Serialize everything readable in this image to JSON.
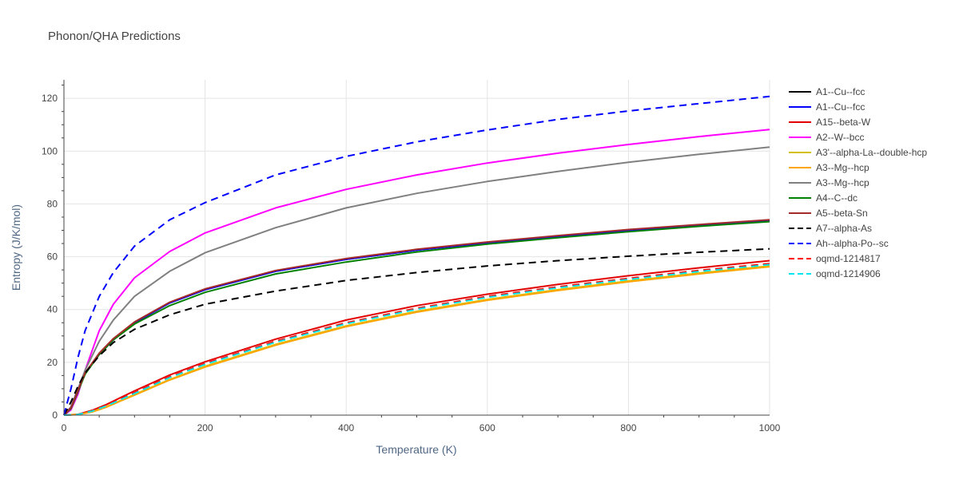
{
  "chart_data": {
    "type": "line",
    "title": "Phonon/QHA Predictions",
    "xlabel": "Temperature (K)",
    "ylabel": "Entropy (J/K/mol)",
    "xlim": [
      0,
      1000
    ],
    "ylim": [
      0,
      127
    ],
    "xticks": [
      0,
      200,
      400,
      600,
      800,
      1000
    ],
    "yticks": [
      0,
      20,
      40,
      60,
      80,
      100,
      120
    ],
    "grid": true,
    "legend_position": "right",
    "series": [
      {
        "name": "A1--Cu--fcc",
        "color": "#000000",
        "dash": "solid",
        "x": [
          0,
          10,
          20,
          30,
          50,
          70,
          100,
          150,
          200,
          300,
          400,
          500,
          600,
          700,
          800,
          900,
          1000
        ],
        "y": [
          0,
          3,
          10,
          16,
          23,
          28.5,
          35,
          42.5,
          47.5,
          54.5,
          59,
          62.5,
          65.3,
          67.7,
          69.9,
          71.8,
          73.5
        ]
      },
      {
        "name": "A1--Cu--fcc",
        "color": "#0000ff",
        "dash": "solid",
        "x": [
          0,
          10,
          20,
          30,
          50,
          70,
          100,
          150,
          200,
          300,
          400,
          500,
          600,
          700,
          800,
          900,
          1000
        ],
        "y": [
          0,
          3,
          10,
          16,
          23,
          28.5,
          35,
          42.5,
          47.5,
          54.5,
          59,
          62.5,
          65.3,
          67.7,
          69.9,
          71.8,
          73.5
        ]
      },
      {
        "name": "A15--beta-W",
        "color": "#e30000",
        "dash": "solid",
        "x": [
          0,
          20,
          40,
          60,
          80,
          100,
          150,
          200,
          300,
          400,
          500,
          600,
          700,
          800,
          900,
          1000
        ],
        "y": [
          0,
          0.3,
          1.8,
          4,
          6.6,
          9.2,
          15.2,
          20.2,
          28.8,
          36,
          41.5,
          45.8,
          49.5,
          52.8,
          55.8,
          58.5
        ]
      },
      {
        "name": "A2--W--bcc",
        "color": "#ff00ff",
        "dash": "solid",
        "x": [
          0,
          10,
          20,
          30,
          50,
          70,
          100,
          150,
          200,
          300,
          400,
          500,
          600,
          700,
          800,
          900,
          1000
        ],
        "y": [
          0,
          2,
          8,
          17,
          32,
          42,
          52,
          62,
          69,
          78.5,
          85.5,
          91,
          95.5,
          99.2,
          102.5,
          105.5,
          108.2
        ]
      },
      {
        "name": "A3'--alpha-La--double-hcp",
        "color": "#d4c000",
        "dash": "solid",
        "x": [
          0,
          20,
          40,
          60,
          80,
          100,
          150,
          200,
          300,
          400,
          500,
          600,
          700,
          800,
          900,
          1000
        ],
        "y": [
          0,
          0.2,
          1.3,
          3.2,
          5.5,
          7.8,
          13.5,
          18.5,
          26.8,
          33.8,
          39.3,
          43.8,
          47.5,
          50.8,
          53.8,
          56.5
        ]
      },
      {
        "name": "A3--Mg--hcp",
        "color": "#ffa500",
        "dash": "solid",
        "x": [
          0,
          20,
          40,
          60,
          80,
          100,
          150,
          200,
          300,
          400,
          500,
          600,
          700,
          800,
          900,
          1000
        ],
        "y": [
          0,
          0.2,
          1.2,
          3,
          5.3,
          7.6,
          13.3,
          18.2,
          26.5,
          33.5,
          39,
          43.5,
          47.2,
          50.5,
          53.5,
          56.2
        ]
      },
      {
        "name": "A3--Mg--hcp",
        "color": "#808080",
        "dash": "solid",
        "x": [
          0,
          10,
          20,
          30,
          50,
          70,
          100,
          150,
          200,
          300,
          400,
          500,
          600,
          700,
          800,
          900,
          1000
        ],
        "y": [
          0,
          3,
          10,
          17,
          28,
          36,
          45,
          54.5,
          61.5,
          71,
          78.5,
          84,
          88.5,
          92.3,
          95.8,
          98.8,
          101.5
        ]
      },
      {
        "name": "A4--C--dc",
        "color": "#008000",
        "dash": "solid",
        "x": [
          0,
          10,
          20,
          30,
          50,
          70,
          100,
          150,
          200,
          300,
          400,
          500,
          600,
          700,
          800,
          900,
          1000
        ],
        "y": [
          0,
          2.5,
          9,
          15.5,
          23,
          28.5,
          34.5,
          41.5,
          46.5,
          53.5,
          58,
          61.8,
          64.8,
          67.2,
          69.5,
          71.5,
          73.3
        ]
      },
      {
        "name": "A5--beta-Sn",
        "color": "#a52a2a",
        "dash": "solid",
        "x": [
          0,
          10,
          20,
          30,
          50,
          70,
          100,
          150,
          200,
          300,
          400,
          500,
          600,
          700,
          800,
          900,
          1000
        ],
        "y": [
          0,
          2.8,
          9.5,
          16,
          23.5,
          29,
          35.3,
          42.8,
          47.8,
          54.8,
          59.3,
          62.8,
          65.6,
          68,
          70.3,
          72.2,
          74
        ]
      },
      {
        "name": "A7--alpha-As",
        "color": "#000000",
        "dash": "dash",
        "x": [
          0,
          10,
          20,
          30,
          50,
          70,
          100,
          150,
          200,
          300,
          400,
          500,
          600,
          700,
          800,
          900,
          1000
        ],
        "y": [
          0,
          5,
          11,
          16,
          22.5,
          27.5,
          32.5,
          38,
          42,
          47,
          51,
          54,
          56.5,
          58.5,
          60.2,
          61.7,
          63
        ]
      },
      {
        "name": "Ah--alpha-Po--sc",
        "color": "#0000ff",
        "dash": "dash",
        "x": [
          0,
          10,
          20,
          30,
          50,
          70,
          100,
          150,
          200,
          300,
          400,
          500,
          600,
          700,
          800,
          900,
          1000
        ],
        "y": [
          0,
          10,
          22,
          32,
          45,
          54,
          64,
          74,
          80.5,
          91,
          98,
          103.5,
          108,
          112,
          115.2,
          118,
          120.7
        ]
      },
      {
        "name": "oqmd-1214817",
        "color": "#ff0000",
        "dash": "dash",
        "x": [
          0,
          20,
          40,
          60,
          80,
          100,
          150,
          200,
          300,
          400,
          500,
          600,
          700,
          800,
          900,
          1000
        ],
        "y": [
          0,
          0.25,
          1.6,
          3.6,
          6,
          8.5,
          14.5,
          19.5,
          28,
          35,
          40.5,
          45,
          48.6,
          51.8,
          54.8,
          57.4
        ]
      },
      {
        "name": "oqmd-1214906",
        "color": "#00e5ee",
        "dash": "dash",
        "x": [
          0,
          20,
          40,
          60,
          80,
          100,
          150,
          200,
          300,
          400,
          500,
          600,
          700,
          800,
          900,
          1000
        ],
        "y": [
          0,
          0.25,
          1.5,
          3.5,
          5.8,
          8.2,
          14.2,
          19.2,
          27.6,
          34.6,
          40.1,
          44.6,
          48.2,
          51.4,
          54.4,
          57
        ]
      }
    ]
  }
}
